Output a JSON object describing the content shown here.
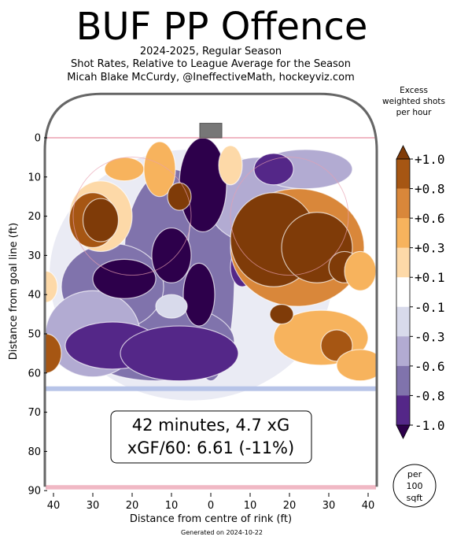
{
  "header": {
    "title": "BUF PP Offence",
    "subtitle_lines": [
      "2024-2025, Regular Season",
      "Shot Rates, Relative to League Average for the Season",
      "Micah Blake McCurdy, @IneffectiveMath, hockeyviz.com"
    ]
  },
  "footer": {
    "generated": "Generated on 2024-10-22",
    "per_badge": [
      "per",
      "100",
      "sqft"
    ]
  },
  "summary": {
    "line1": "42 minutes, 4.7 xG",
    "line2": "xGF/60: 6.61 (-11%)"
  },
  "colors": {
    "deep_purple": "#2d004b",
    "purple": "#542788",
    "mid_purple": "#8073ac",
    "light_purple": "#b2abd2",
    "pale_purple": "#d8daeb",
    "white": "#ffffff",
    "pale_orange": "#fdd9a8",
    "light_orange": "#f7b35d",
    "orange": "#d9873a",
    "dark_orange": "#a65613",
    "brown": "#7f3b08",
    "red_line": "#f0b8c4",
    "blue_line": "#b7c4e8",
    "boards": "#666666"
  },
  "chart_data": {
    "type": "heatmap",
    "xlabel": "Distance from centre of rink (ft)",
    "ylabel": "Distance from goal line (ft)",
    "xlim": [
      -42.5,
      42.5
    ],
    "ylim": [
      -11,
      90
    ],
    "x_ticks": [
      -40,
      -30,
      -20,
      -10,
      0,
      10,
      20,
      30,
      40
    ],
    "x_tick_labels": [
      "40",
      "30",
      "20",
      "10",
      "0",
      "10",
      "20",
      "30",
      "40"
    ],
    "y_ticks": [
      0,
      10,
      20,
      30,
      40,
      50,
      60,
      70,
      80,
      90
    ],
    "y_tick_labels": [
      "0",
      "10",
      "20",
      "30",
      "40",
      "50",
      "60",
      "70",
      "80",
      "90"
    ],
    "colorbar": {
      "title_lines": [
        "Excess",
        "weighted shots",
        "per hour"
      ],
      "tick_labels": [
        "+1.0",
        "+0.8",
        "+0.6",
        "+0.3",
        "+0.1",
        "-0.1",
        "-0.3",
        "-0.6",
        "-0.8",
        "-1.0"
      ],
      "levels": [
        1.0,
        0.8,
        0.6,
        0.3,
        0.1,
        -0.1,
        -0.3,
        -0.6,
        -0.8,
        -1.0
      ],
      "band_colors": [
        "#a65613",
        "#d9873a",
        "#f7b35d",
        "#fdd9a8",
        "#ffffff",
        "#d8daeb",
        "#b2abd2",
        "#8073ac",
        "#542788"
      ],
      "extend_top_color": "#7f3b08",
      "extend_bottom_color": "#2d004b"
    },
    "blobs": [
      {
        "x": -10,
        "y": 30,
        "rx": 12,
        "ry": 22,
        "value": -0.5
      },
      {
        "x": 0,
        "y": 35,
        "rx": 6,
        "ry": 27,
        "value": -0.5
      },
      {
        "x": -14,
        "y": 52,
        "rx": 20,
        "ry": 10,
        "value": -0.5
      },
      {
        "x": -25,
        "y": 38,
        "rx": 13,
        "ry": 11,
        "value": -0.5
      },
      {
        "x": -30,
        "y": 50,
        "rx": 12,
        "ry": 11,
        "value": -0.35
      },
      {
        "x": 12,
        "y": 16,
        "rx": 13,
        "ry": 11,
        "value": -0.3
      },
      {
        "x": 24,
        "y": 8,
        "rx": 12,
        "ry": 5,
        "value": -0.3
      },
      {
        "x": -25,
        "y": 53,
        "rx": 12,
        "ry": 6,
        "value": -0.9
      },
      {
        "x": -8,
        "y": 55,
        "rx": 15,
        "ry": 7,
        "value": -0.9
      },
      {
        "x": -2,
        "y": 12,
        "rx": 6,
        "ry": 12,
        "value": -1.0
      },
      {
        "x": -3,
        "y": 40,
        "rx": 4,
        "ry": 8,
        "value": -1.0
      },
      {
        "x": -10,
        "y": 30,
        "rx": 5,
        "ry": 7,
        "value": -1.0
      },
      {
        "x": -22,
        "y": 36,
        "rx": 8,
        "ry": 5,
        "value": -1.0
      },
      {
        "x": 8,
        "y": 33,
        "rx": 3,
        "ry": 5,
        "value": -0.9
      },
      {
        "x": 16,
        "y": 8,
        "rx": 5,
        "ry": 4,
        "value": -0.8
      },
      {
        "x": -10,
        "y": 43,
        "rx": 4,
        "ry": 3,
        "value": -0.2
      },
      {
        "x": 22,
        "y": 38,
        "rx": 3.5,
        "ry": 3.5,
        "value": -0.9
      },
      {
        "x": -22,
        "y": 8,
        "rx": 5,
        "ry": 3,
        "value": 0.3
      },
      {
        "x": -28,
        "y": 20,
        "rx": 8,
        "ry": 9,
        "value": 0.2
      },
      {
        "x": -30,
        "y": 21,
        "rx": 6,
        "ry": 7,
        "value": 0.7
      },
      {
        "x": -28,
        "y": 21,
        "rx": 4.5,
        "ry": 5.5,
        "value": 1.0
      },
      {
        "x": -13,
        "y": 8,
        "rx": 4,
        "ry": 7,
        "value": 0.4
      },
      {
        "x": -8,
        "y": 15,
        "rx": 3,
        "ry": 3.5,
        "value": 1.0
      },
      {
        "x": 22,
        "y": 28,
        "rx": 17,
        "ry": 15,
        "value": 0.6
      },
      {
        "x": 16,
        "y": 26,
        "rx": 11,
        "ry": 12,
        "value": 1.0
      },
      {
        "x": 27,
        "y": 28,
        "rx": 9,
        "ry": 9,
        "value": 1.0
      },
      {
        "x": 34,
        "y": 33,
        "rx": 4,
        "ry": 4,
        "value": 1.0
      },
      {
        "x": 38,
        "y": 34,
        "rx": 4,
        "ry": 5,
        "value": 0.3
      },
      {
        "x": 28,
        "y": 51,
        "rx": 12,
        "ry": 7,
        "value": 0.35
      },
      {
        "x": 32,
        "y": 53,
        "rx": 4,
        "ry": 4,
        "value": 0.7
      },
      {
        "x": 38,
        "y": 58,
        "rx": 6,
        "ry": 4,
        "value": 0.3
      },
      {
        "x": 18,
        "y": 45,
        "rx": 3,
        "ry": 2.5,
        "value": 0.9
      },
      {
        "x": 5,
        "y": 7,
        "rx": 3,
        "ry": 5,
        "value": 0.2
      },
      {
        "x": -42,
        "y": 55,
        "rx": 4,
        "ry": 5,
        "value": 0.7
      },
      {
        "x": -42,
        "y": 38,
        "rx": 3,
        "ry": 4,
        "value": 0.2
      }
    ]
  }
}
